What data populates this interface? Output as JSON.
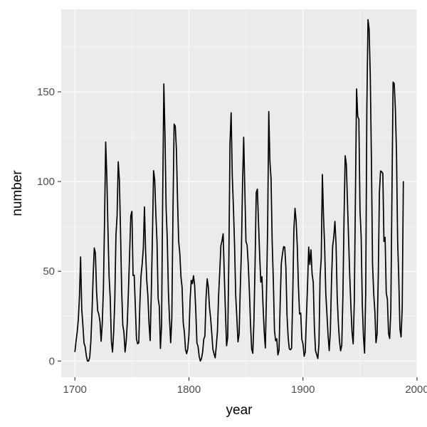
{
  "chart_data": {
    "type": "line",
    "title": "",
    "xlabel": "year",
    "ylabel": "number",
    "xlim": [
      1688,
      2000
    ],
    "ylim": [
      -9,
      196
    ],
    "grid": true,
    "legend": "none",
    "colors": {
      "panel": "#ebebeb",
      "grid": "#ffffff",
      "line": "#000000",
      "tick_text": "#4d4d4d",
      "tick_mark": "#333333"
    },
    "x_ticks": [
      {
        "value": 1700,
        "label": "1700"
      },
      {
        "value": 1800,
        "label": "1800"
      },
      {
        "value": 1900,
        "label": "1900"
      },
      {
        "value": 2000,
        "label": "2000"
      }
    ],
    "y_ticks": [
      {
        "value": 0,
        "label": "0"
      },
      {
        "value": 50,
        "label": "50"
      },
      {
        "value": 100,
        "label": "100"
      },
      {
        "value": 150,
        "label": "150"
      }
    ],
    "series": [
      {
        "x": [
          1700,
          1701,
          1702,
          1703,
          1704,
          1705,
          1706,
          1707,
          1708,
          1709,
          1710,
          1711,
          1712,
          1713,
          1714,
          1715,
          1716,
          1717,
          1718,
          1719,
          1720,
          1721,
          1722,
          1723,
          1724,
          1725,
          1726,
          1727,
          1728,
          1729,
          1730,
          1731,
          1732,
          1733,
          1734,
          1735,
          1736,
          1737,
          1738,
          1739,
          1740,
          1741,
          1742,
          1743,
          1744,
          1745,
          1746,
          1747,
          1748,
          1749,
          1750,
          1751,
          1752,
          1753,
          1754,
          1755,
          1756,
          1757,
          1758,
          1759,
          1760,
          1761,
          1762,
          1763,
          1764,
          1765,
          1766,
          1767,
          1768,
          1769,
          1770,
          1771,
          1772,
          1773,
          1774,
          1775,
          1776,
          1777,
          1778,
          1779,
          1780,
          1781,
          1782,
          1783,
          1784,
          1785,
          1786,
          1787,
          1788,
          1789,
          1790,
          1791,
          1792,
          1793,
          1794,
          1795,
          1796,
          1797,
          1798,
          1799,
          1800,
          1801,
          1802,
          1803,
          1804,
          1805,
          1806,
          1807,
          1808,
          1809,
          1810,
          1811,
          1812,
          1813,
          1814,
          1815,
          1816,
          1817,
          1818,
          1819,
          1820,
          1821,
          1822,
          1823,
          1824,
          1825,
          1826,
          1827,
          1828,
          1829,
          1830,
          1831,
          1832,
          1833,
          1834,
          1835,
          1836,
          1837,
          1838,
          1839,
          1840,
          1841,
          1842,
          1843,
          1844,
          1845,
          1846,
          1847,
          1848,
          1849,
          1850,
          1851,
          1852,
          1853,
          1854,
          1855,
          1856,
          1857,
          1858,
          1859,
          1860,
          1861,
          1862,
          1863,
          1864,
          1865,
          1866,
          1867,
          1868,
          1869,
          1870,
          1871,
          1872,
          1873,
          1874,
          1875,
          1876,
          1877,
          1878,
          1879,
          1880,
          1881,
          1882,
          1883,
          1884,
          1885,
          1886,
          1887,
          1888,
          1889,
          1890,
          1891,
          1892,
          1893,
          1894,
          1895,
          1896,
          1897,
          1898,
          1899,
          1900,
          1901,
          1902,
          1903,
          1904,
          1905,
          1906,
          1907,
          1908,
          1909,
          1910,
          1911,
          1912,
          1913,
          1914,
          1915,
          1916,
          1917,
          1918,
          1919,
          1920,
          1921,
          1922,
          1923,
          1924,
          1925,
          1926,
          1927,
          1928,
          1929,
          1930,
          1931,
          1932,
          1933,
          1934,
          1935,
          1936,
          1937,
          1938,
          1939,
          1940,
          1941,
          1942,
          1943,
          1944,
          1945,
          1946,
          1947,
          1948,
          1949,
          1950,
          1951,
          1952,
          1953,
          1954,
          1955,
          1956,
          1957,
          1958,
          1959,
          1960,
          1961,
          1962,
          1963,
          1964,
          1965,
          1966,
          1967,
          1968,
          1969,
          1970,
          1971,
          1972,
          1973,
          1974,
          1975,
          1976,
          1977,
          1978,
          1979,
          1980,
          1981,
          1982,
          1983,
          1984,
          1985,
          1986,
          1987,
          1988
        ],
        "y": [
          5,
          11,
          16,
          23,
          36,
          58,
          29,
          20,
          10,
          8,
          3,
          0,
          0,
          2,
          11,
          27,
          47,
          63,
          60,
          39,
          28,
          26,
          22,
          11,
          21,
          40,
          78,
          122,
          103,
          73,
          47,
          35,
          11,
          5,
          16,
          34,
          70,
          81,
          111,
          101,
          73,
          40,
          20,
          16,
          5,
          11,
          22,
          40,
          60,
          80.9,
          83.4,
          47.7,
          47.8,
          30.7,
          12.2,
          9.6,
          10.2,
          32.4,
          47.6,
          54,
          62.9,
          85.9,
          61.2,
          45.1,
          36.4,
          20.9,
          11.4,
          37.8,
          69.8,
          106.1,
          100.8,
          81.6,
          66.5,
          34.8,
          30.6,
          7,
          19.8,
          92.5,
          154.4,
          125.9,
          84.8,
          68.1,
          38.5,
          22.8,
          10.2,
          24.1,
          82.9,
          132,
          130.9,
          118.1,
          89.9,
          66.6,
          60,
          46.9,
          41,
          21.3,
          16,
          6.4,
          4.1,
          6.8,
          14.5,
          34,
          45,
          43.1,
          47.5,
          42.2,
          28.1,
          10.1,
          8.1,
          2.5,
          0,
          1.4,
          5,
          12.2,
          13.9,
          35.4,
          45.8,
          41.1,
          30.1,
          23.9,
          15.6,
          6.6,
          4,
          1.8,
          8.5,
          16.6,
          36.3,
          49.6,
          64.2,
          67,
          70.9,
          47.8,
          27.5,
          8.5,
          13.2,
          56.9,
          121.5,
          138.3,
          103.2,
          85.7,
          64.6,
          36.7,
          24.2,
          10.7,
          15,
          40.1,
          61.5,
          98.5,
          124.7,
          96.3,
          66.6,
          64.5,
          54.1,
          39,
          20.6,
          6.7,
          4.3,
          22.7,
          54.8,
          93.8,
          95.8,
          77.2,
          59.1,
          44,
          47,
          30.5,
          16.3,
          7.3,
          37.6,
          74,
          139,
          111.2,
          101.6,
          66.2,
          44.7,
          17,
          11.3,
          12.4,
          3.4,
          6,
          32.3,
          54.3,
          59.7,
          63.7,
          63.5,
          52.2,
          25.4,
          13.1,
          6.8,
          6.3,
          7.1,
          35.6,
          73,
          85.1,
          78,
          64,
          41.8,
          26.2,
          26.7,
          12.1,
          9.5,
          2.7,
          5,
          24.4,
          42,
          63.5,
          53.8,
          62,
          48.5,
          43.9,
          18.6,
          5.7,
          3.6,
          1.4,
          9.6,
          47.4,
          57.1,
          103.9,
          80.6,
          63.6,
          37.6,
          26.1,
          14.2,
          5.8,
          16.7,
          44.3,
          63.9,
          69,
          77.8,
          64.9,
          35.7,
          21.2,
          11.1,
          5.7,
          8.7,
          36.1,
          79.7,
          114.4,
          109.6,
          88.8,
          67.8,
          47.5,
          30.6,
          16.3,
          9.6,
          33.2,
          92.6,
          151.6,
          136.3,
          134.7,
          83.9,
          69.4,
          31.5,
          13.9,
          4.4,
          38,
          141.7,
          190.2,
          184.8,
          159,
          112.3,
          53.9,
          37.6,
          27.9,
          10.2,
          15.1,
          47,
          93.8,
          105.9,
          105.5,
          104.5,
          66.6,
          68.9,
          38,
          34.5,
          15.5,
          12.6,
          27.5,
          92.5,
          155.4,
          154.6,
          140.4,
          115.9,
          66.6,
          45.9,
          17.9,
          13.4,
          29.4,
          100.2
        ]
      }
    ]
  }
}
